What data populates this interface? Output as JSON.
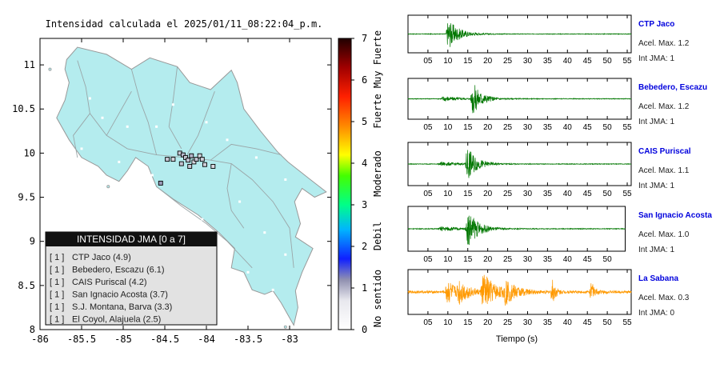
{
  "map": {
    "title": "Intensidad calculada el 2025/01/11_08:22:04_p.m.",
    "x_ticks": [
      {
        "value": -86,
        "label": "-86"
      },
      {
        "value": -85.5,
        "label": "-85.5"
      },
      {
        "value": -85,
        "label": "-85"
      },
      {
        "value": -84.5,
        "label": "-84.5"
      },
      {
        "value": -84,
        "label": "-84"
      },
      {
        "value": -83.5,
        "label": "-83.5"
      },
      {
        "value": -83,
        "label": "-83"
      }
    ],
    "y_ticks": [
      {
        "value": 11,
        "label": "11"
      },
      {
        "value": 10.5,
        "label": "10.5"
      },
      {
        "value": 10,
        "label": "10"
      },
      {
        "value": 9.5,
        "label": "9.5"
      },
      {
        "value": 9,
        "label": "9"
      },
      {
        "value": 8.5,
        "label": "8.5"
      },
      {
        "value": 8,
        "label": "8"
      }
    ],
    "xlim": [
      -86,
      -82.5
    ],
    "ylim": [
      8,
      11.3
    ],
    "land_color": "#b4ecee",
    "colors": {
      "border": "#999999",
      "road": "#9aa6a8"
    },
    "stations": [
      {
        "lon": -84.55,
        "lat": 9.66,
        "color": "#9a9ab8"
      },
      {
        "lon": -84.47,
        "lat": 9.93,
        "color": "#c9c9d6"
      },
      {
        "lon": -84.4,
        "lat": 9.93,
        "color": "#d4d4dc"
      },
      {
        "lon": -84.32,
        "lat": 10.0,
        "color": "#c8c8d4"
      },
      {
        "lon": -84.28,
        "lat": 9.98,
        "color": "#b8b8cc"
      },
      {
        "lon": -84.25,
        "lat": 9.95,
        "color": "#c8c8d4"
      },
      {
        "lon": -84.22,
        "lat": 9.92,
        "color": "#c0c0d0"
      },
      {
        "lon": -84.18,
        "lat": 9.97,
        "color": "#b4b4c8"
      },
      {
        "lon": -84.15,
        "lat": 9.9,
        "color": "#d8d8e0"
      },
      {
        "lon": -84.12,
        "lat": 9.93,
        "color": "#c4c4d2"
      },
      {
        "lon": -84.08,
        "lat": 9.97,
        "color": "#d4d4dc"
      },
      {
        "lon": -84.05,
        "lat": 9.93,
        "color": "#ccccd6"
      },
      {
        "lon": -84.2,
        "lat": 9.85,
        "color": "#c8c8d4"
      },
      {
        "lon": -84.02,
        "lat": 9.87,
        "color": "#d0d0da"
      },
      {
        "lon": -83.92,
        "lat": 9.85,
        "color": "#d8d8e0"
      },
      {
        "lon": -84.3,
        "lat": 9.88,
        "color": "#c4c4d2"
      }
    ],
    "legend": {
      "title": "INTENSIDAD JMA [0 a 7]",
      "rows": [
        {
          "level": "[ 1 ]",
          "name": "CTP Jaco (4.9)"
        },
        {
          "level": "[ 1 ]",
          "name": "Bebedero, Escazu (6.1)"
        },
        {
          "level": "[ 1 ]",
          "name": "CAIS Puriscal (4.2)"
        },
        {
          "level": "[ 1 ]",
          "name": "San Ignacio Acosta (3.7)"
        },
        {
          "level": "[ 1 ]",
          "name": "S.J. Montana, Barva (3.3)"
        },
        {
          "level": "[ 1 ]",
          "name": "El Coyol, Alajuela (2.5)"
        }
      ]
    }
  },
  "colorbar": {
    "ticks": [
      {
        "value": 0,
        "label": "0"
      },
      {
        "value": 1,
        "label": "1"
      },
      {
        "value": 2,
        "label": "2"
      },
      {
        "value": 3,
        "label": "3"
      },
      {
        "value": 4,
        "label": "4"
      },
      {
        "value": 5,
        "label": "5"
      },
      {
        "value": 6,
        "label": "6"
      },
      {
        "value": 7,
        "label": "7"
      }
    ],
    "labels": [
      {
        "text": "No sentido",
        "from": 0,
        "to": 1.5
      },
      {
        "text": "Debil",
        "from": 1.5,
        "to": 3
      },
      {
        "text": "Moderado",
        "from": 3,
        "to": 4.5
      },
      {
        "text": "Fuerte",
        "from": 4.5,
        "to": 6
      },
      {
        "text": "Muy Fuerte",
        "from": 6,
        "to": 7
      }
    ],
    "stops": [
      {
        "value": 0,
        "color": "#ffffff"
      },
      {
        "value": 0.7,
        "color": "#e8e8ee"
      },
      {
        "value": 1.2,
        "color": "#9090b0"
      },
      {
        "value": 1.7,
        "color": "#1020ff"
      },
      {
        "value": 2.4,
        "color": "#00b4ff"
      },
      {
        "value": 3.0,
        "color": "#00ff88"
      },
      {
        "value": 3.7,
        "color": "#44ff00"
      },
      {
        "value": 4.2,
        "color": "#ffff00"
      },
      {
        "value": 4.9,
        "color": "#ff8800"
      },
      {
        "value": 5.6,
        "color": "#ff2000"
      },
      {
        "value": 6.3,
        "color": "#a00000"
      },
      {
        "value": 7,
        "color": "#200000"
      }
    ]
  },
  "waveforms": {
    "x_ticks": [
      {
        "value": 5,
        "label": "05"
      },
      {
        "value": 10,
        "label": "10"
      },
      {
        "value": 15,
        "label": "15"
      },
      {
        "value": 20,
        "label": "20"
      },
      {
        "value": 25,
        "label": "25"
      },
      {
        "value": 30,
        "label": "30"
      },
      {
        "value": 35,
        "label": "35"
      },
      {
        "value": 40,
        "label": "40"
      },
      {
        "value": 45,
        "label": "45"
      },
      {
        "value": 50,
        "label": "50"
      },
      {
        "value": 55,
        "label": "55"
      }
    ],
    "xlabel": "Tiempo (s)",
    "traces": [
      {
        "name": "CTP Jaco",
        "accel": "Acel. Max. 1.2",
        "jma": "Int JMA: 1",
        "color": "#007700",
        "xlim": [
          0,
          56
        ],
        "bursts": [
          {
            "t": 9.8,
            "amp": 1.0,
            "decay": 2.6
          }
        ],
        "noise": 0.02
      },
      {
        "name": "Bebedero, Escazu",
        "accel": "Acel. Max. 1.2",
        "jma": "Int JMA: 1",
        "color": "#007700",
        "xlim": [
          0,
          56
        ],
        "bursts": [
          {
            "t": 8.5,
            "amp": 0.15,
            "decay": 4
          },
          {
            "t": 16.0,
            "amp": 1.0,
            "decay": 2.2
          }
        ],
        "noise": 0.02
      },
      {
        "name": "CAIS Puriscal",
        "accel": "Acel. Max. 1.1",
        "jma": "Int JMA: 1",
        "color": "#007700",
        "xlim": [
          0,
          56
        ],
        "bursts": [
          {
            "t": 8.0,
            "amp": 0.1,
            "decay": 5
          },
          {
            "t": 14.6,
            "amp": 1.0,
            "decay": 2.2
          }
        ],
        "noise": 0.02
      },
      {
        "name": "San Ignacio Acosta",
        "accel": "Acel. Max. 1.0",
        "jma": "Int JMA: 1",
        "color": "#007700",
        "xlim": [
          0,
          54.5
        ],
        "bursts": [
          {
            "t": 8.0,
            "amp": 0.12,
            "decay": 5
          },
          {
            "t": 14.8,
            "amp": 1.0,
            "decay": 2.4
          }
        ],
        "noise": 0.02
      },
      {
        "name": "La Sabana",
        "accel": "Acel. Max. 0.3",
        "jma": "Int JMA: 0",
        "color": "#ff9900",
        "xlim": [
          0,
          56
        ],
        "bursts": [
          {
            "t": 9.6,
            "amp": 0.8,
            "decay": 1.8
          },
          {
            "t": 12.5,
            "amp": 0.6,
            "decay": 2.5
          },
          {
            "t": 18.5,
            "amp": 1.0,
            "decay": 3.0
          },
          {
            "t": 24.0,
            "amp": 0.55,
            "decay": 3.0
          },
          {
            "t": 36.0,
            "amp": 0.8,
            "decay": 0.8
          },
          {
            "t": 45.8,
            "amp": 0.6,
            "decay": 0.9
          }
        ],
        "noise": 0.06
      }
    ]
  }
}
